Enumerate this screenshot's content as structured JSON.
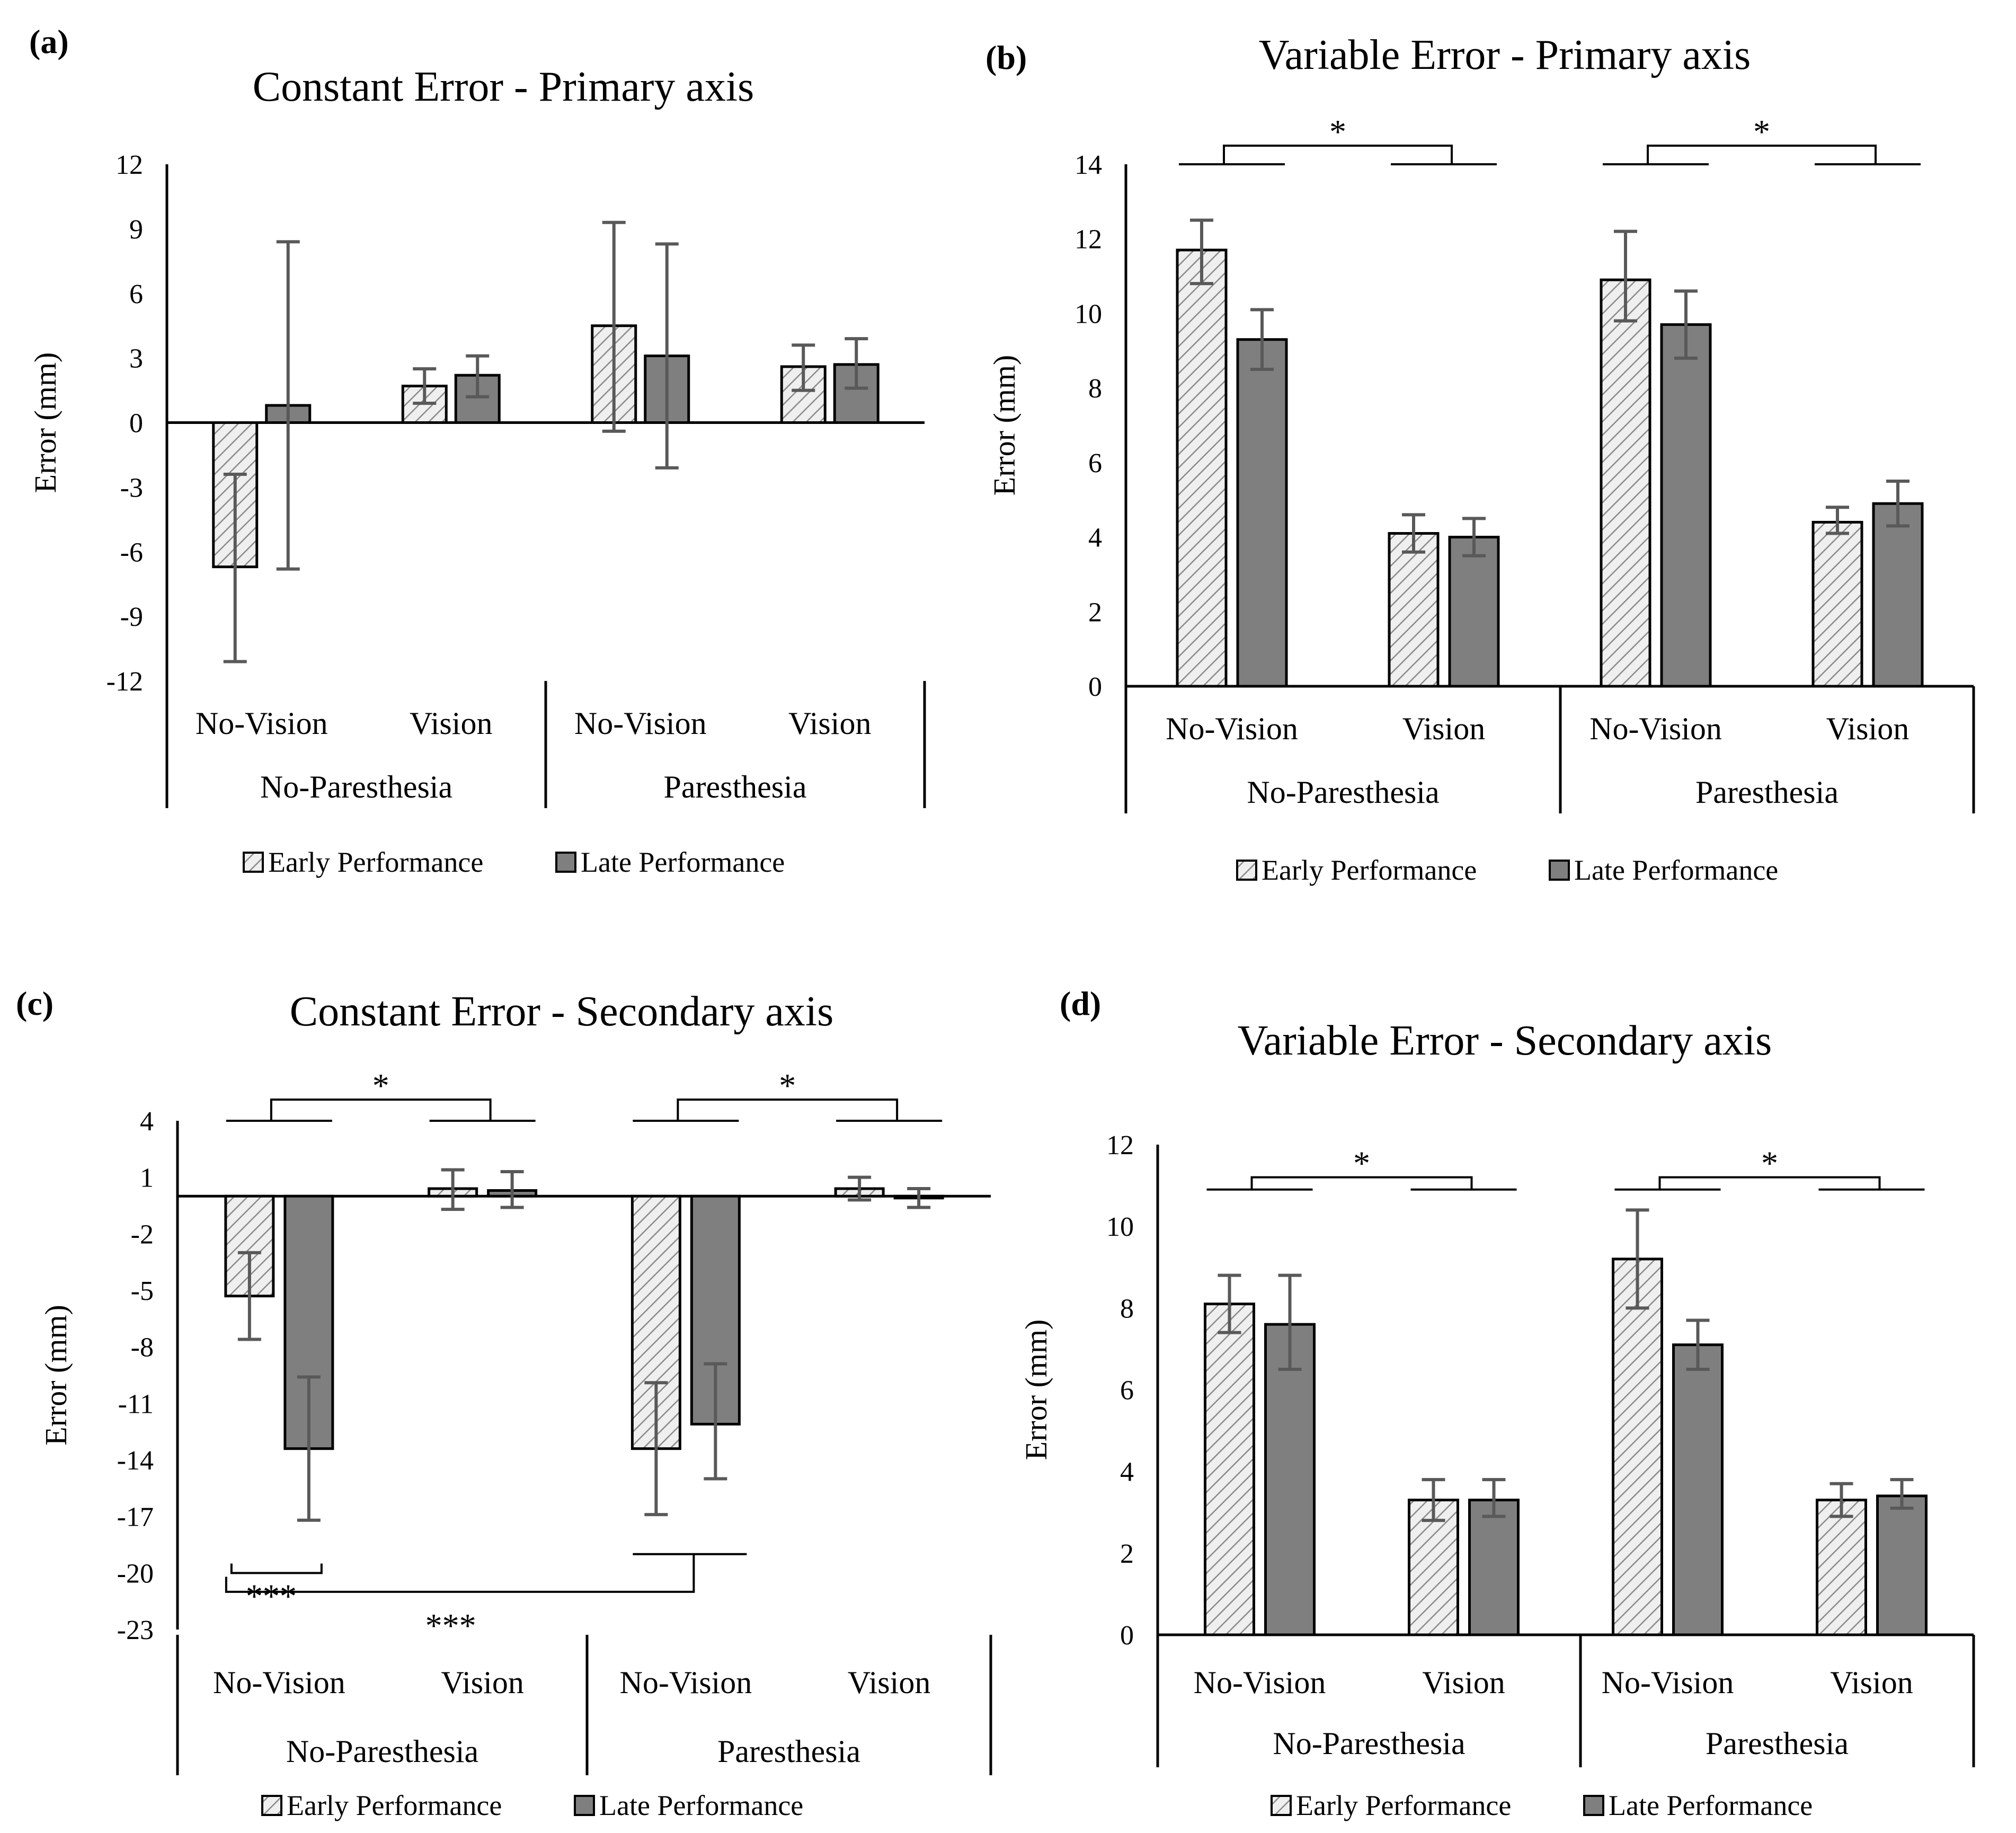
{
  "legend": {
    "early": "Early Performance",
    "late": "Late Performance"
  },
  "colors": {
    "early_fill": "#e8e8e8",
    "late_fill": "#7f7f7f",
    "error_bar": "#595959",
    "axis": "#000000"
  },
  "chart_data": [
    {
      "id": "a",
      "panel_label": "(a)",
      "type": "bar",
      "title": "Constant Error - Primary axis",
      "ylabel": "Error (mm)",
      "ylim": [
        -12,
        12
      ],
      "yticks": [
        12,
        9,
        6,
        3,
        0,
        -3,
        -6,
        -9,
        -12
      ],
      "group_labels": [
        "No-Paresthesia",
        "Paresthesia"
      ],
      "categories": [
        "No-Vision",
        "Vision",
        "No-Vision",
        "Vision"
      ],
      "series": [
        {
          "name": "Early Performance",
          "values": [
            -6.7,
            1.7,
            4.5,
            2.6
          ],
          "err_low": [
            -11.1,
            0.9,
            -0.4,
            1.5
          ],
          "err_high": [
            -2.4,
            2.5,
            9.3,
            3.6
          ]
        },
        {
          "name": "Late Performance",
          "values": [
            0.8,
            2.2,
            3.1,
            2.7
          ],
          "err_low": [
            -6.8,
            1.2,
            -2.1,
            1.6
          ],
          "err_high": [
            8.4,
            3.1,
            8.3,
            3.9
          ]
        }
      ],
      "significance": []
    },
    {
      "id": "b",
      "panel_label": "(b)",
      "type": "bar",
      "title": "Variable Error - Primary axis",
      "ylabel": "Error (mm)",
      "ylim": [
        0,
        14
      ],
      "yticks": [
        14,
        12,
        10,
        8,
        6,
        4,
        2,
        0
      ],
      "group_labels": [
        "No-Paresthesia",
        "Paresthesia"
      ],
      "categories": [
        "No-Vision",
        "Vision",
        "No-Vision",
        "Vision"
      ],
      "series": [
        {
          "name": "Early Performance",
          "values": [
            11.7,
            4.1,
            10.9,
            4.4
          ],
          "err_low": [
            10.8,
            3.6,
            9.8,
            4.1
          ],
          "err_high": [
            12.5,
            4.6,
            12.2,
            4.8
          ]
        },
        {
          "name": "Late Performance",
          "values": [
            9.3,
            4.0,
            9.7,
            4.9
          ],
          "err_low": [
            8.5,
            3.5,
            8.8,
            4.3
          ],
          "err_high": [
            10.1,
            4.5,
            10.6,
            5.5
          ]
        }
      ],
      "significance": [
        "*",
        "*"
      ]
    },
    {
      "id": "c",
      "panel_label": "(c)",
      "type": "bar",
      "title": "Constant Error - Secondary axis",
      "ylabel": "Error (mm)",
      "ylim": [
        -23,
        4
      ],
      "yticks": [
        4,
        1,
        -2,
        -5,
        -8,
        -11,
        -14,
        -17,
        -20,
        -23
      ],
      "group_labels": [
        "No-Paresthesia",
        "Paresthesia"
      ],
      "categories": [
        "No-Vision",
        "Vision",
        "No-Vision",
        "Vision"
      ],
      "series": [
        {
          "name": "Early Performance",
          "values": [
            -5.3,
            0.4,
            -13.4,
            0.4
          ],
          "err_low": [
            -7.6,
            -0.7,
            -16.9,
            -0.2
          ],
          "err_high": [
            -3.0,
            1.4,
            -9.9,
            1.0
          ]
        },
        {
          "name": "Late Performance",
          "values": [
            -13.4,
            0.3,
            -12.1,
            -0.1
          ],
          "err_low": [
            -17.2,
            -0.6,
            -15.0,
            -0.6
          ],
          "err_high": [
            -9.6,
            1.3,
            -8.9,
            0.4
          ]
        }
      ],
      "significance": [
        "*",
        "*",
        "***",
        "***"
      ]
    },
    {
      "id": "d",
      "panel_label": "(d)",
      "type": "bar",
      "title": "Variable Error - Secondary axis",
      "ylabel": "Error (mm)",
      "ylim": [
        0,
        12
      ],
      "yticks": [
        12,
        10,
        8,
        6,
        4,
        2,
        0
      ],
      "group_labels": [
        "No-Paresthesia",
        "Paresthesia"
      ],
      "categories": [
        "No-Vision",
        "Vision",
        "No-Vision",
        "Vision"
      ],
      "series": [
        {
          "name": "Early Performance",
          "values": [
            8.1,
            3.3,
            9.2,
            3.3
          ],
          "err_low": [
            7.4,
            2.8,
            8.0,
            2.9
          ],
          "err_high": [
            8.8,
            3.8,
            10.4,
            3.7
          ]
        },
        {
          "name": "Late Performance",
          "values": [
            7.6,
            3.3,
            7.1,
            3.4
          ],
          "err_low": [
            6.5,
            2.9,
            6.5,
            3.1
          ],
          "err_high": [
            8.8,
            3.8,
            7.7,
            3.8
          ]
        }
      ],
      "significance": [
        "*",
        "*"
      ]
    }
  ]
}
